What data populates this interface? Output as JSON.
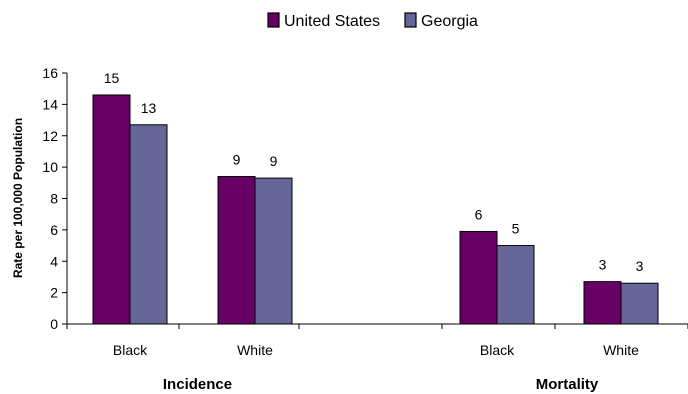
{
  "chart_data": {
    "type": "bar",
    "ylabel": "Rate per 100,000 Population",
    "ylim": [
      0,
      16
    ],
    "yticks": [
      0,
      2,
      4,
      6,
      8,
      10,
      12,
      14,
      16
    ],
    "legend_position": "top-center",
    "groups": [
      {
        "label": "Incidence",
        "categories": [
          "Black",
          "White"
        ]
      },
      {
        "label": "Mortality",
        "categories": [
          "Black",
          "White"
        ]
      }
    ],
    "categories": [
      "Black",
      "White",
      "Black",
      "White"
    ],
    "series": [
      {
        "name": "United States",
        "color": "#660066",
        "values": [
          14.6,
          9.4,
          5.9,
          2.7
        ],
        "labels": [
          "15",
          "9",
          "6",
          "3"
        ]
      },
      {
        "name": "Georgia",
        "color": "#666699",
        "values": [
          12.7,
          9.3,
          5.0,
          2.6
        ],
        "labels": [
          "13",
          "9",
          "5",
          "3"
        ]
      }
    ]
  }
}
